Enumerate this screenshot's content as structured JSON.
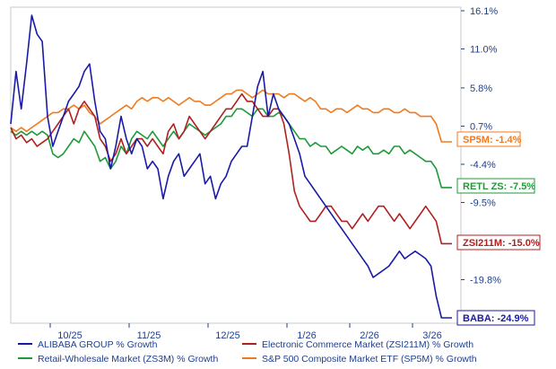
{
  "chart_data": {
    "type": "line",
    "title": "",
    "xlabel": "",
    "ylabel": "",
    "y_unit": "%",
    "ylim": [
      -24.9,
      16.1
    ],
    "y_ticks": [
      16.1,
      11.0,
      5.8,
      0.7,
      -4.4,
      -9.5,
      -14.6,
      -19.8
    ],
    "y_tick_labels": [
      "16.1%",
      "11.0%",
      "5.8%",
      "0.7%",
      "-4.4%",
      "-9.5%",
      "",
      "-19.8%"
    ],
    "x_tick_labels": [
      "10/25",
      "11/25",
      "12/25",
      "1/26",
      "2/26",
      "3/26"
    ],
    "grid": false,
    "legend": "bottom",
    "series": [
      {
        "name": "ALIBABA GROUP % Growth",
        "color": "#1a1aa8",
        "end_label": "BABA: -24.9%",
        "x": [
          0,
          1,
          2,
          3,
          4,
          5,
          6,
          7,
          8,
          9,
          10,
          11,
          12,
          13,
          14,
          15,
          16,
          17,
          18,
          19,
          20,
          21,
          22,
          23,
          24,
          25,
          26,
          27,
          28,
          29,
          30,
          31,
          32,
          33,
          34,
          35,
          36,
          37,
          38,
          39,
          40,
          41,
          42,
          43,
          44,
          45,
          46,
          47,
          48,
          49,
          50,
          51,
          52,
          53,
          54,
          55,
          56,
          57,
          58,
          59,
          60,
          61,
          62,
          63,
          64,
          65,
          66,
          67,
          68,
          69,
          70,
          71,
          72,
          73,
          74,
          75,
          76,
          77,
          78,
          79,
          80,
          81,
          82,
          83,
          84
        ],
        "y": [
          1,
          8,
          3,
          9,
          15.5,
          13,
          12,
          2,
          -2,
          0,
          2,
          4,
          5,
          6,
          8,
          9,
          4,
          0,
          -1,
          -5,
          -2,
          2,
          -1,
          -3,
          -1,
          -2,
          -5,
          -4,
          -5,
          -9,
          -6,
          -4,
          -3,
          -6,
          -5,
          -4,
          -3,
          -7,
          -6,
          -9,
          -7,
          -6,
          -4,
          -3,
          -2,
          -2,
          2,
          6,
          8,
          2,
          5,
          3,
          2,
          1,
          -1,
          -3,
          -6,
          -7,
          -8,
          -9,
          -10,
          -11,
          -12,
          -13,
          -14,
          -15,
          -16,
          -17,
          -18,
          -19.5,
          -19,
          -18.5,
          -18,
          -17,
          -16,
          -17,
          -16.5,
          -16,
          -16.5,
          -17,
          -18,
          -22,
          -24.9,
          -24.9,
          -24.9
        ]
      },
      {
        "name": "Electronic Commerce Market (ZSI211M) % Growth",
        "color": "#b02020",
        "end_label": "ZSI211M: -15.0%",
        "x": [
          0,
          1,
          2,
          3,
          4,
          5,
          6,
          7,
          8,
          9,
          10,
          11,
          12,
          13,
          14,
          15,
          16,
          17,
          18,
          19,
          20,
          21,
          22,
          23,
          24,
          25,
          26,
          27,
          28,
          29,
          30,
          31,
          32,
          33,
          34,
          35,
          36,
          37,
          38,
          39,
          40,
          41,
          42,
          43,
          44,
          45,
          46,
          47,
          48,
          49,
          50,
          51,
          52,
          53,
          54,
          55,
          56,
          57,
          58,
          59,
          60,
          61,
          62,
          63,
          64,
          65,
          66,
          67,
          68,
          69,
          70,
          71,
          72,
          73,
          74,
          75,
          76,
          77,
          78,
          79,
          80,
          81,
          82,
          83,
          84
        ],
        "y": [
          0.5,
          -1,
          -0.5,
          -1.5,
          -1,
          -2,
          -1.5,
          -1,
          0,
          1,
          2,
          3,
          1,
          3,
          4,
          3,
          2,
          -1,
          -2,
          -4,
          -3,
          -1,
          -3,
          -2,
          -1,
          -1,
          -2,
          -1,
          -2,
          -3,
          0,
          1,
          -1,
          0,
          2,
          1,
          0,
          -1,
          0,
          1,
          2,
          3,
          3,
          4,
          5,
          4,
          4,
          3,
          2,
          2,
          3,
          3,
          1,
          -3,
          -8,
          -10,
          -11,
          -12,
          -12,
          -11,
          -10,
          -10,
          -11,
          -12,
          -12,
          -13,
          -12,
          -11,
          -12,
          -11,
          -10,
          -10,
          -11,
          -12,
          -11,
          -12,
          -13,
          -12,
          -11,
          -10,
          -11,
          -12,
          -15,
          -15,
          -15
        ]
      },
      {
        "name": "Retail-Wholesale Market (ZS3M) % Growth",
        "color": "#1f9a3a",
        "end_label": "RETL ZS: -7.5%",
        "x": [
          0,
          1,
          2,
          3,
          4,
          5,
          6,
          7,
          8,
          9,
          10,
          11,
          12,
          13,
          14,
          15,
          16,
          17,
          18,
          19,
          20,
          21,
          22,
          23,
          24,
          25,
          26,
          27,
          28,
          29,
          30,
          31,
          32,
          33,
          34,
          35,
          36,
          37,
          38,
          39,
          40,
          41,
          42,
          43,
          44,
          45,
          46,
          47,
          48,
          49,
          50,
          51,
          52,
          53,
          54,
          55,
          56,
          57,
          58,
          59,
          60,
          61,
          62,
          63,
          64,
          65,
          66,
          67,
          68,
          69,
          70,
          71,
          72,
          73,
          74,
          75,
          76,
          77,
          78,
          79,
          80,
          81,
          82,
          83,
          84
        ],
        "y": [
          0,
          -0.5,
          0,
          -0.5,
          0,
          -0.5,
          0,
          -0.5,
          -3,
          -3.5,
          -3,
          -2,
          -1,
          -1.5,
          0,
          -1,
          -2,
          -4,
          -3.5,
          -5,
          -4,
          -2,
          -3,
          -1,
          0,
          -0.5,
          -1,
          0,
          -1,
          -2,
          -1,
          0,
          -1,
          0,
          1,
          0.5,
          0,
          -0.5,
          0,
          0.5,
          1,
          2,
          2,
          3,
          3,
          2.5,
          2,
          3,
          3,
          2,
          2,
          2.5,
          2,
          1,
          0,
          -1,
          -1,
          -2,
          -1.5,
          -2,
          -2,
          -3,
          -2.5,
          -2,
          -2.5,
          -3,
          -2,
          -2.5,
          -2,
          -3,
          -3,
          -2.5,
          -3,
          -2,
          -2,
          -3,
          -2.5,
          -3,
          -3.5,
          -4,
          -4,
          -5,
          -7.5,
          -7.5,
          -7.5
        ]
      },
      {
        "name": "S&P 500 Composite Market ETF (SP5M) % Growth",
        "color": "#f07a20",
        "end_label": "SP5M: -1.4%",
        "x": [
          0,
          1,
          2,
          3,
          4,
          5,
          6,
          7,
          8,
          9,
          10,
          11,
          12,
          13,
          14,
          15,
          16,
          17,
          18,
          19,
          20,
          21,
          22,
          23,
          24,
          25,
          26,
          27,
          28,
          29,
          30,
          31,
          32,
          33,
          34,
          35,
          36,
          37,
          38,
          39,
          40,
          41,
          42,
          43,
          44,
          45,
          46,
          47,
          48,
          49,
          50,
          51,
          52,
          53,
          54,
          55,
          56,
          57,
          58,
          59,
          60,
          61,
          62,
          63,
          64,
          65,
          66,
          67,
          68,
          69,
          70,
          71,
          72,
          73,
          74,
          75,
          76,
          77,
          78,
          79,
          80,
          81,
          82,
          83,
          84
        ],
        "y": [
          0.5,
          0,
          0.5,
          0,
          0.5,
          1,
          1.5,
          2,
          2.5,
          2.5,
          3,
          3,
          3.5,
          3,
          3.5,
          2.5,
          2,
          1,
          1.5,
          2,
          2.5,
          3,
          3.5,
          3,
          4,
          4.5,
          4,
          4.5,
          4.5,
          4,
          4.5,
          4,
          3.5,
          4,
          4.5,
          4,
          4,
          3.5,
          3.5,
          4,
          4.5,
          5,
          5,
          5.5,
          5.5,
          5,
          4.5,
          5,
          5.5,
          5,
          5,
          5,
          4.5,
          5,
          5,
          4.5,
          4,
          4.5,
          4,
          3,
          3,
          2.5,
          3,
          3,
          2.5,
          3,
          3.5,
          3,
          3,
          2.5,
          2.5,
          3,
          3,
          2.5,
          2.5,
          3,
          2.5,
          2.5,
          2,
          2,
          2,
          1,
          -1.4,
          -1.4,
          -1.4
        ]
      }
    ]
  }
}
